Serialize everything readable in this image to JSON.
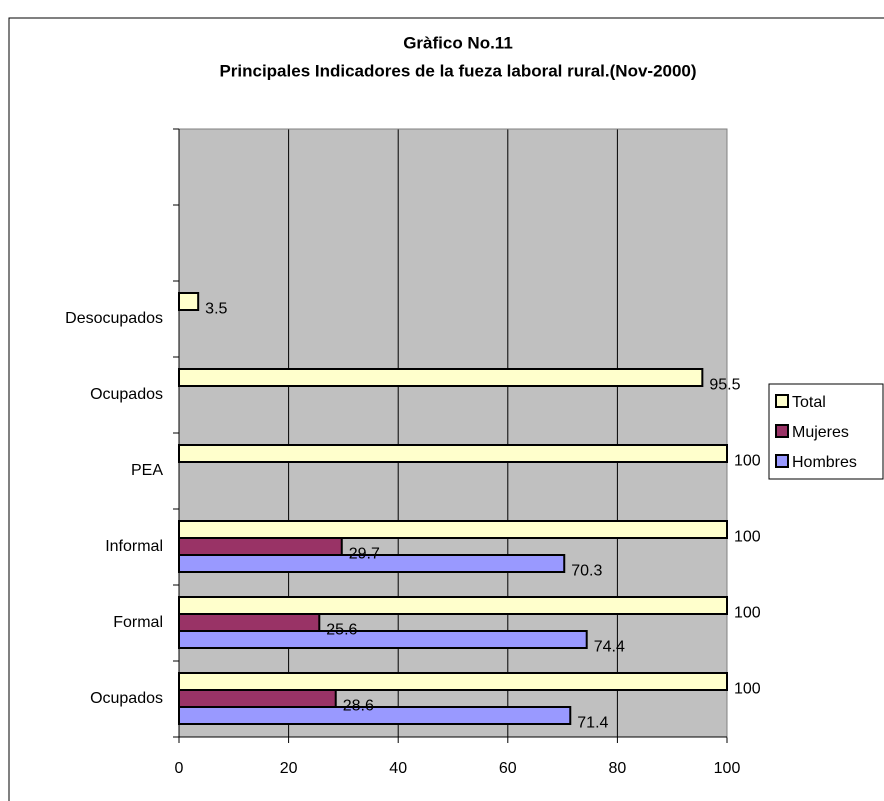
{
  "chart_data": {
    "type": "bar",
    "orientation": "horizontal",
    "title": "Gràfico No.11",
    "subtitle": "Principales Indicadores de la fueza laboral rural.(Nov-2000)",
    "categories": [
      "Ocupados",
      "Formal",
      "Informal",
      "PEA",
      "Ocupados",
      "Desocupados",
      null,
      null
    ],
    "series": [
      {
        "name": "Hombres",
        "color": "#9999ff",
        "values": [
          71.4,
          74.4,
          70.3,
          null,
          null,
          null,
          null,
          null
        ]
      },
      {
        "name": "Mujeres",
        "color": "#993366",
        "values": [
          28.6,
          25.6,
          29.7,
          null,
          null,
          null,
          null,
          null
        ]
      },
      {
        "name": "Total",
        "color": "#ffffcc",
        "values": [
          100,
          100,
          100,
          100,
          95.5,
          3.5,
          null,
          null
        ]
      }
    ],
    "xlim": [
      0,
      100
    ],
    "xticks": [
      0,
      20,
      40,
      60,
      80,
      100
    ],
    "grid": true,
    "legend": "right"
  }
}
